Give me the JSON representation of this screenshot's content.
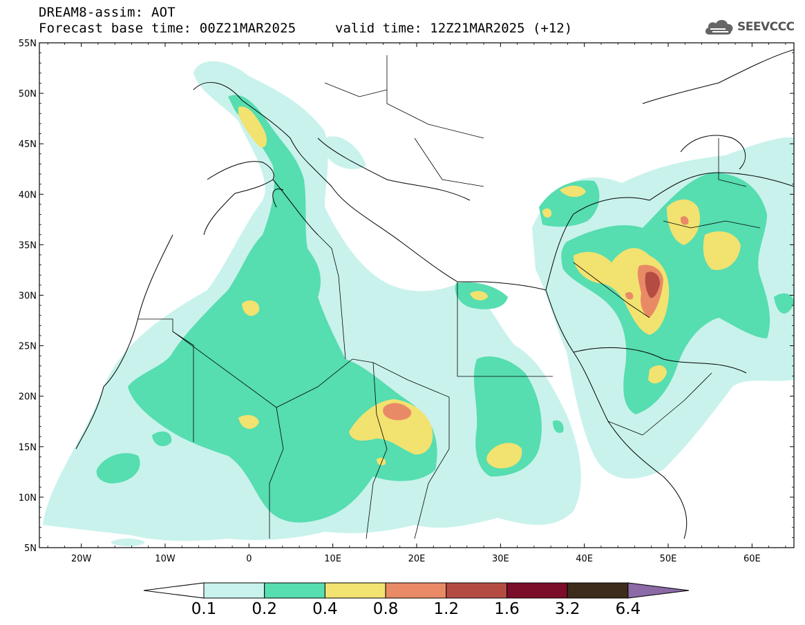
{
  "header": {
    "title": "DREAM8-assim: AOT",
    "base_time": "Forecast base time: 00Z21MAR2025",
    "valid_time": "valid time: 12Z21MAR2025 (+12)"
  },
  "logo": {
    "text": "SEEVCCC",
    "icon": "cloud-icon"
  },
  "axes": {
    "lat_labels": [
      "55N",
      "50N",
      "45N",
      "40N",
      "35N",
      "30N",
      "25N",
      "20N",
      "15N",
      "10N",
      "5N"
    ],
    "lon_labels": [
      "20W",
      "10W",
      "0",
      "10E",
      "20E",
      "30E",
      "40E",
      "50E",
      "60E"
    ],
    "lat_range": [
      5,
      55
    ],
    "lon_range": [
      -25,
      65
    ]
  },
  "colorbar": {
    "labels": [
      "0.1",
      "0.2",
      "0.4",
      "0.8",
      "1.2",
      "1.6",
      "3.2",
      "6.4"
    ],
    "colors": [
      "#c9f2ec",
      "#56ddb0",
      "#f2e270",
      "#e98a66",
      "#b44c43",
      "#7b0c2a",
      "#3d2b1c"
    ],
    "over_color": "#8b6aa6",
    "under_color": "#ffffff"
  },
  "legend_levels": {
    "l1": "#c9f2ec",
    "l2": "#56ddb0",
    "l3": "#f2e270",
    "l4": "#e98a66",
    "l5": "#b44c43"
  }
}
